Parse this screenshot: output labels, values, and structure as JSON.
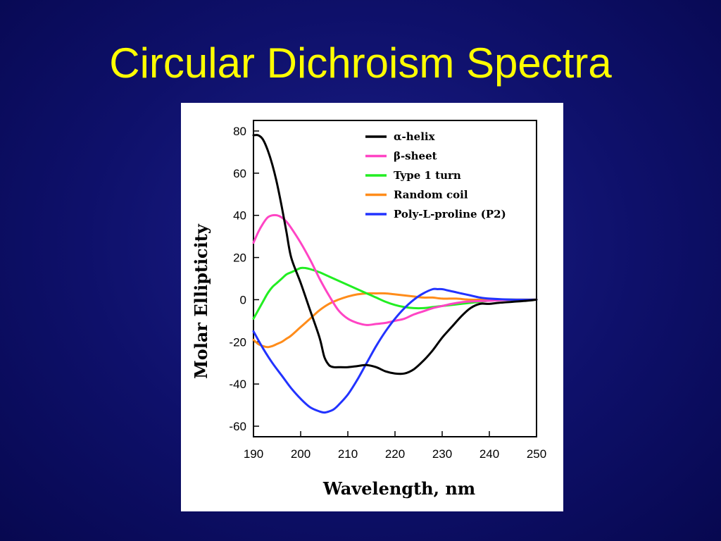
{
  "slide": {
    "title": "Circular Dichroism Spectra"
  },
  "chart_data": {
    "type": "line",
    "xlabel": "Wavelength, nm",
    "ylabel": "Molar Ellipticity",
    "xlim": [
      190,
      250
    ],
    "ylim": [
      -65,
      85
    ],
    "xticks": [
      190,
      200,
      210,
      220,
      230,
      240,
      250
    ],
    "yticks": [
      -60,
      -40,
      -20,
      0,
      20,
      40,
      60,
      80
    ],
    "legend_position": "top-right",
    "series": [
      {
        "name": "α-helix",
        "color": "#000000",
        "x": [
          190,
          191,
          192,
          193,
          194,
          195,
          196,
          197,
          198,
          200,
          202,
          204,
          205,
          206,
          207,
          208,
          210,
          212,
          214,
          216,
          218,
          220,
          222,
          224,
          226,
          228,
          230,
          232,
          234,
          236,
          238,
          240,
          242,
          245,
          248,
          250
        ],
        "y": [
          78,
          78,
          76,
          71,
          64,
          55,
          44,
          32,
          20,
          8,
          -5,
          -18,
          -27,
          -31,
          -32,
          -32,
          -32,
          -31.5,
          -31,
          -32,
          -34,
          -35,
          -35,
          -33,
          -29,
          -24,
          -18,
          -13,
          -8,
          -4,
          -2,
          -2,
          -1.5,
          -1,
          -0.5,
          0
        ]
      },
      {
        "name": "β-sheet",
        "color": "#ff44c4",
        "x": [
          190,
          191,
          192,
          193,
          194,
          195,
          196,
          197,
          198,
          200,
          202,
          204,
          206,
          208,
          210,
          212,
          214,
          216,
          218,
          220,
          222,
          224,
          226,
          228,
          230,
          232,
          235,
          240,
          245,
          250
        ],
        "y": [
          27,
          32,
          36,
          39,
          40,
          40,
          39,
          37,
          34,
          27,
          19,
          10,
          2,
          -5,
          -9,
          -11,
          -12,
          -11.5,
          -11,
          -10,
          -9,
          -7,
          -5.5,
          -4,
          -3,
          -2,
          -1,
          -0.5,
          0,
          0
        ]
      },
      {
        "name": "Type 1 turn",
        "color": "#22ee22",
        "x": [
          190,
          191,
          192,
          193,
          194,
          195,
          196,
          197,
          198,
          199,
          200,
          201,
          202,
          204,
          206,
          208,
          210,
          212,
          214,
          216,
          218,
          220,
          222,
          224,
          226,
          228,
          230,
          234,
          238,
          242,
          246,
          250
        ],
        "y": [
          -9,
          -5,
          -1,
          3,
          6,
          8,
          10,
          12,
          13,
          14,
          15,
          15,
          14.5,
          13,
          11,
          9,
          7,
          5,
          3,
          1,
          -1,
          -2.5,
          -3.5,
          -4,
          -4,
          -3.5,
          -3,
          -2,
          -1,
          0,
          0,
          0
        ]
      },
      {
        "name": "Random coil",
        "color": "#ff8c1a",
        "x": [
          190,
          191,
          192,
          193,
          194,
          195,
          196,
          197,
          198,
          200,
          202,
          204,
          206,
          208,
          210,
          212,
          214,
          216,
          218,
          220,
          222,
          224,
          226,
          228,
          230,
          233,
          236,
          240,
          245,
          250
        ],
        "y": [
          -19,
          -21,
          -22,
          -22.5,
          -22,
          -21,
          -20,
          -18.5,
          -17,
          -13,
          -9,
          -5,
          -2,
          0,
          1.5,
          2.5,
          3,
          3,
          3,
          2.5,
          2,
          1.5,
          1,
          1,
          0.5,
          0.5,
          0,
          0,
          0,
          0
        ]
      },
      {
        "name": "Poly-L-proline (P2)",
        "color": "#2233ff",
        "x": [
          190,
          192,
          194,
          196,
          198,
          200,
          202,
          204,
          205,
          206,
          207,
          208,
          210,
          212,
          214,
          216,
          218,
          220,
          222,
          224,
          226,
          228,
          229,
          230,
          231,
          232,
          234,
          236,
          238,
          240,
          245,
          250
        ],
        "y": [
          -15,
          -23,
          -30,
          -36,
          -42,
          -47,
          -51,
          -53,
          -53.5,
          -53,
          -52,
          -50,
          -45,
          -38,
          -30,
          -22,
          -15,
          -9,
          -4,
          0,
          3,
          5,
          5,
          5,
          4.5,
          4,
          3,
          2,
          1,
          0.5,
          0,
          0
        ]
      }
    ]
  }
}
